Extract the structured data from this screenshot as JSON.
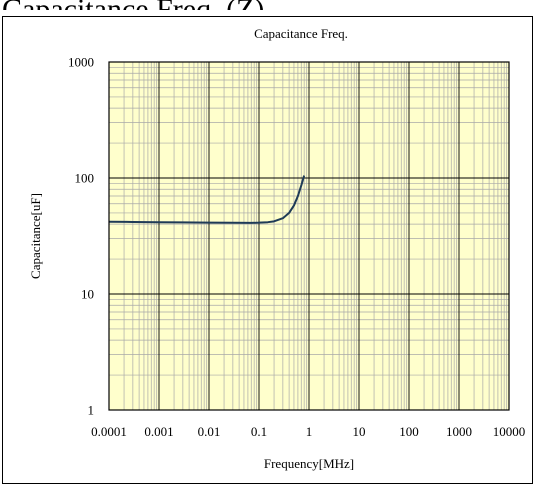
{
  "header_fragment": "Capacitance Freq. (Z)",
  "chart_data": {
    "type": "line",
    "title": "Capacitance Freq.",
    "xlabel": "Frequency[MHz]",
    "ylabel": "Capacitance[uF]",
    "x_scale": "log",
    "y_scale": "log",
    "xlim": [
      0.0001,
      10000
    ],
    "ylim": [
      1,
      1000
    ],
    "x_ticks": [
      0.0001,
      0.001,
      0.01,
      0.1,
      1,
      10,
      100,
      1000,
      10000
    ],
    "x_tick_labels": [
      "0.0001",
      "0.001",
      "0.01",
      "0.1",
      "1",
      "10",
      "100",
      "1000",
      "10000"
    ],
    "y_ticks": [
      1,
      10,
      100,
      1000
    ],
    "y_tick_labels": [
      "1",
      "10",
      "100",
      "1000"
    ],
    "grid": true,
    "plot_background": "#ffffcc",
    "series": [
      {
        "color": "#1f3b57",
        "x": [
          0.0001,
          0.0003,
          0.001,
          0.003,
          0.01,
          0.03,
          0.07,
          0.1,
          0.15,
          0.2,
          0.3,
          0.4,
          0.5,
          0.6,
          0.7,
          0.8
        ],
        "y": [
          42,
          41.8,
          41.6,
          41.4,
          41.2,
          41.1,
          41,
          41.2,
          41.6,
          42.3,
          45,
          50,
          58,
          70,
          86,
          105
        ]
      }
    ]
  }
}
